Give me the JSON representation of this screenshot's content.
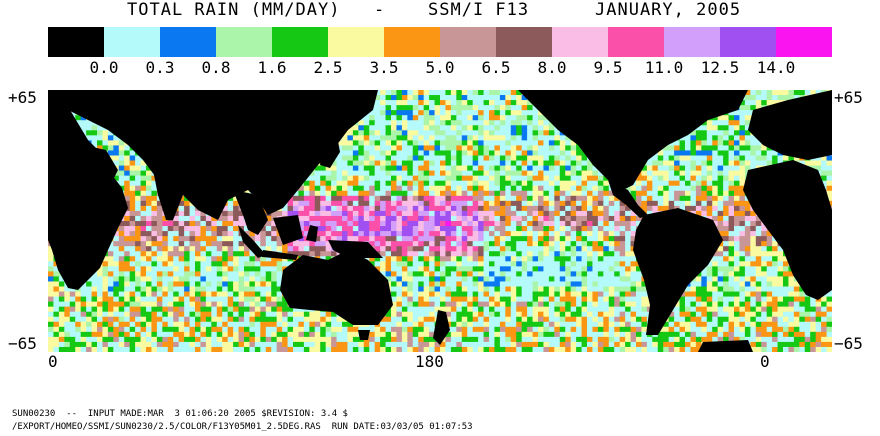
{
  "title": {
    "main": "TOTAL RAIN (MM/DAY)",
    "separator": "-",
    "sensor": "SSM/I F13",
    "date": "JANUARY, 2005"
  },
  "legend": {
    "colors": [
      "#000000",
      "#b4fafa",
      "#0a78f0",
      "#aaf5aa",
      "#14c814",
      "#fafaa0",
      "#fa9614",
      "#c89696",
      "#8c5a5a",
      "#fabee6",
      "#fa50aa",
      "#d2a0fa",
      "#a050f0",
      "#fa14f0"
    ],
    "labels": [
      "0.0",
      "0.3",
      "0.8",
      "1.6",
      "2.5",
      "3.5",
      "5.0",
      "6.5",
      "8.0",
      "9.5",
      "11.0",
      "12.5",
      "14.0"
    ]
  },
  "axes": {
    "lat_top_left": "+65",
    "lat_top_right": "+65",
    "lat_bottom_left": "−65",
    "lat_bottom_right": "−65",
    "lon_labels": [
      "0",
      "180",
      "0"
    ]
  },
  "map": {
    "land_color": "#000000"
  },
  "footer": {
    "line1": "SUN00230  --  INPUT MADE:MAR  3 01:06:20 2005 $REVISION: 3.4 $",
    "line2": "/EXPORT/HOMEO/SSMI/SUN0230/2.5/COLOR/F13Y05M01_2.5DEG.RAS  RUN DATE:03/03/05 01:07:53"
  }
}
